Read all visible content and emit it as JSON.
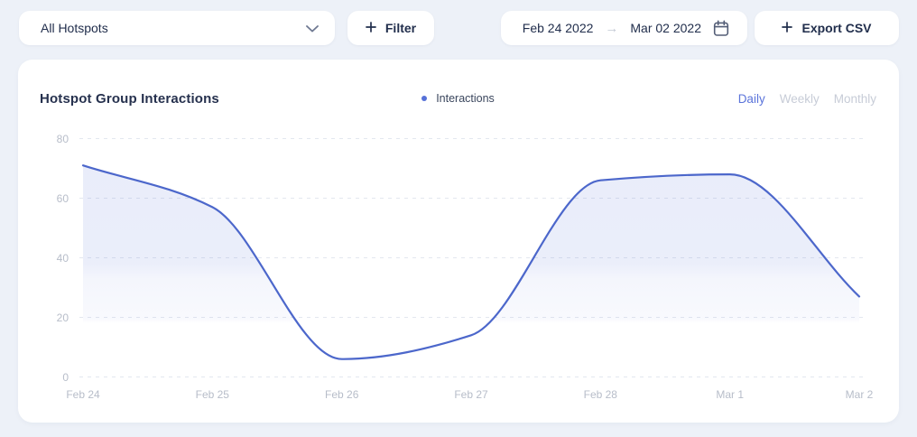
{
  "toolbar": {
    "hotspot_select": {
      "value": "All Hotspots"
    },
    "filter_button": {
      "label": "Filter"
    },
    "date_range": {
      "start": "Feb 24 2022",
      "arrow": "→",
      "end": "Mar 02 2022"
    },
    "export_button": {
      "label": "Export CSV"
    }
  },
  "chart_card": {
    "title": "Hotspot Group Interactions",
    "legend": [
      {
        "label": "Interactions",
        "color": "#5671d8"
      }
    ],
    "range_tabs": [
      {
        "label": "Daily",
        "active": true
      },
      {
        "label": "Weekly",
        "active": false
      },
      {
        "label": "Monthly",
        "active": false
      }
    ]
  },
  "chart_data": {
    "type": "area",
    "title": "Hotspot Group Interactions",
    "categories": [
      "Feb 24",
      "Feb 25",
      "Feb 26",
      "Feb 27",
      "Feb 28",
      "Mar 1",
      "Mar 2"
    ],
    "series": [
      {
        "name": "Interactions",
        "values": [
          71,
          57,
          6,
          14,
          66,
          68,
          27
        ]
      }
    ],
    "ylim": [
      0,
      80
    ],
    "yticks": [
      0,
      20,
      40,
      60,
      80
    ],
    "xlabel": "",
    "ylabel": "",
    "grid": "horizontal-dashed",
    "legend_position": "top-center",
    "curve": "monotone",
    "line_color": "#4c67cb",
    "area_fill": "vertical fade #5671d8 to transparent near y=20"
  }
}
